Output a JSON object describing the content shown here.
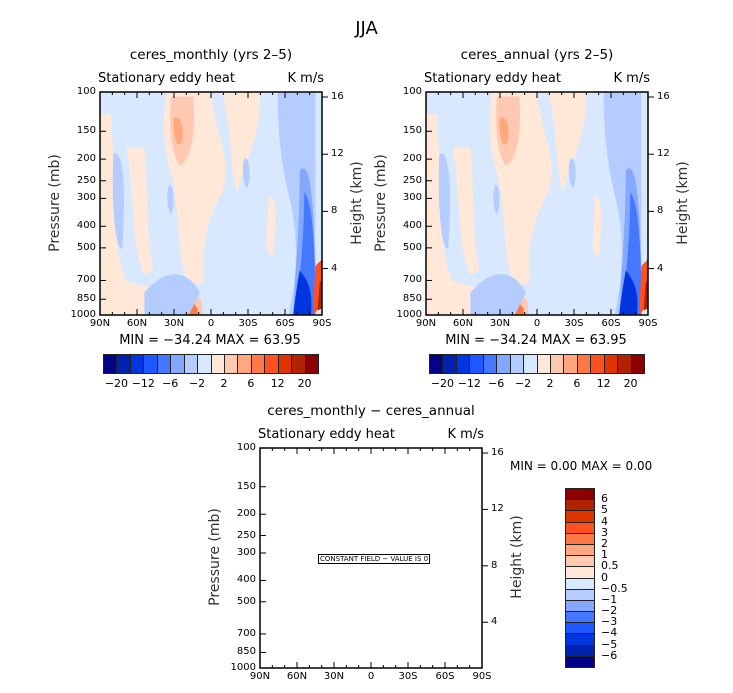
{
  "title": "JJA",
  "axes": {
    "x_ticks": [
      "90N",
      "60N",
      "30N",
      "0",
      "30S",
      "60S",
      "90S"
    ],
    "p_ticks": [
      100,
      150,
      200,
      250,
      300,
      400,
      500,
      700,
      850,
      1000
    ],
    "z_ticks": [
      16,
      12,
      8,
      4
    ],
    "ylabel": "Pressure (mb)",
    "ylabel_right": "Height (km)"
  },
  "panels": [
    {
      "title": "ceres_monthly (yrs 2–5)",
      "left_string": "Stationary eddy heat",
      "right_string": "K m/s",
      "minmax": "MIN = −34.24   MAX =   63.95"
    },
    {
      "title": "ceres_annual (yrs 2–5)",
      "left_string": "Stationary eddy heat",
      "right_string": "K m/s",
      "minmax": "MIN = −34.24   MAX =   63.95"
    },
    {
      "title": "ceres_monthly − ceres_annual",
      "left_string": "Stationary eddy heat",
      "right_string": "K m/s",
      "minmax": "MIN =     0.00   MAX =     0.00",
      "note": "CONSTANT FIELD − VALUE IS 0"
    }
  ],
  "colorbar_top": {
    "colors": [
      "#03038a",
      "#0022b0",
      "#0036e0",
      "#1e56ff",
      "#4478ff",
      "#84a8ff",
      "#b4ccff",
      "#d8e8ff",
      "#ffe8d8",
      "#ffc8b0",
      "#ffa880",
      "#ff7848",
      "#ff5020",
      "#e03400",
      "#b02200",
      "#8b0000"
    ],
    "labels": [
      "−20",
      "",
      "−12",
      "",
      "−6",
      "",
      "−2",
      "",
      "2",
      "",
      "6",
      "",
      "12",
      "",
      "20"
    ]
  },
  "colorbar_diff": {
    "colors": [
      "#8b0000",
      "#b02200",
      "#e03400",
      "#ff5020",
      "#ff7848",
      "#ffa880",
      "#ffc8b0",
      "#ffe8d8",
      "#d8e8ff",
      "#b4ccff",
      "#84a8ff",
      "#4478ff",
      "#1e56ff",
      "#0036e0",
      "#0022b0",
      "#03038a"
    ],
    "labels": [
      "6",
      "5",
      "4",
      "3",
      "2",
      "1",
      "0.5",
      "0",
      "−0.5",
      "−1",
      "−2",
      "−3",
      "−4",
      "−5",
      "−6"
    ]
  },
  "chart_data": [
    {
      "type": "heatmap",
      "title": "ceres_monthly (yrs 2–5)",
      "xlabel": "",
      "ylabel": "Pressure (mb)",
      "y2label": "Height (km)",
      "xlim": [
        "90N",
        "90S"
      ],
      "ylim": [
        1000,
        100
      ],
      "yscale": "log",
      "min": -34.24,
      "max": 63.95,
      "units": "K m/s"
    },
    {
      "type": "heatmap",
      "title": "ceres_annual (yrs 2–5)",
      "xlabel": "",
      "ylabel": "Pressure (mb)",
      "y2label": "Height (km)",
      "xlim": [
        "90N",
        "90S"
      ],
      "ylim": [
        1000,
        100
      ],
      "yscale": "log",
      "min": -34.24,
      "max": 63.95,
      "units": "K m/s"
    },
    {
      "type": "heatmap",
      "title": "ceres_monthly − ceres_annual",
      "ylabel": "Pressure (mb)",
      "y2label": "Height (km)",
      "xlim": [
        "90N",
        "90S"
      ],
      "ylim": [
        1000,
        100
      ],
      "yscale": "log",
      "min": 0.0,
      "max": 0.0,
      "constant_value": 0
    }
  ]
}
